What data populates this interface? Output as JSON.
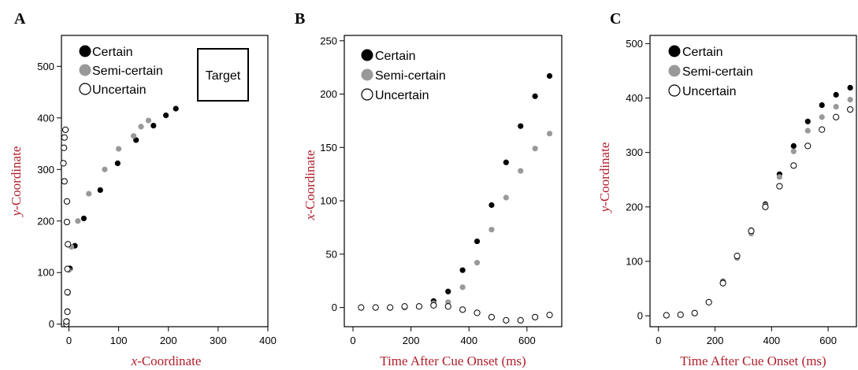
{
  "colors": {
    "certain": "#000000",
    "semi_certain": "#999999",
    "uncertain_stroke": "#000000",
    "uncertain_fill": "#ffffff",
    "axis_title": "#b01e2b"
  },
  "chart_data": [
    {
      "panel": "A",
      "type": "scatter",
      "xlabel_italic": "x",
      "xlabel_rest": "-Coordinate",
      "ylabel_italic": "y",
      "ylabel_rest": "-Coordinate",
      "xlim": [
        -15,
        400
      ],
      "ylim": [
        -5,
        560
      ],
      "xticks": [
        0,
        100,
        200,
        300,
        400
      ],
      "yticks": [
        0,
        100,
        200,
        300,
        400,
        500
      ],
      "legend_position": "top-left",
      "annotation": "Target",
      "series": [
        {
          "name": "Certain",
          "style": "certain",
          "points": [
            [
              -5,
              0
            ],
            [
              -4,
              6
            ],
            [
              -3,
              25
            ],
            [
              -2,
              62
            ],
            [
              2,
              108
            ],
            [
              12,
              152
            ],
            [
              30,
              205
            ],
            [
              63,
              260
            ],
            [
              98,
              312
            ],
            [
              135,
              357
            ],
            [
              170,
              385
            ],
            [
              195,
              405
            ],
            [
              215,
              418
            ]
          ]
        },
        {
          "name": "Semi-certain",
          "style": "semi",
          "points": [
            [
              -5,
              0
            ],
            [
              -4,
              6
            ],
            [
              -3,
              24
            ],
            [
              -2,
              60
            ],
            [
              0,
              105
            ],
            [
              5,
              150
            ],
            [
              18,
              200
            ],
            [
              40,
              253
            ],
            [
              72,
              300
            ],
            [
              100,
              340
            ],
            [
              130,
              365
            ],
            [
              145,
              383
            ],
            [
              160,
              395
            ]
          ]
        },
        {
          "name": "Uncertain",
          "style": "uncertain",
          "points": [
            [
              -5,
              0
            ],
            [
              -5,
              5
            ],
            [
              -3,
              24
            ],
            [
              -3,
              62
            ],
            [
              -3,
              107
            ],
            [
              -2,
              155
            ],
            [
              -4,
              198
            ],
            [
              -4,
              238
            ],
            [
              -9,
              277
            ],
            [
              -11,
              312
            ],
            [
              -10,
              342
            ],
            [
              -9,
              362
            ],
            [
              -7,
              377
            ]
          ]
        }
      ]
    },
    {
      "panel": "B",
      "type": "scatter",
      "xlabel": "Time After Cue Onset (ms)",
      "ylabel_italic": "x",
      "ylabel_rest": "-Coordinate",
      "xlim": [
        -30,
        720
      ],
      "ylim": [
        -18,
        255
      ],
      "xticks": [
        0,
        200,
        400,
        600
      ],
      "yticks": [
        0,
        50,
        100,
        150,
        200,
        250
      ],
      "legend_position": "top-left",
      "series": [
        {
          "name": "Certain",
          "style": "certain",
          "x": [
            28,
            78,
            128,
            178,
            228,
            278,
            328,
            378,
            428,
            478,
            528,
            578,
            628,
            678
          ],
          "y": [
            0,
            0,
            0,
            0,
            1,
            6,
            15,
            35,
            62,
            96,
            136,
            170,
            198,
            217
          ]
        },
        {
          "name": "Semi-certain",
          "style": "semi",
          "x": [
            28,
            78,
            128,
            178,
            228,
            278,
            328,
            378,
            428,
            478,
            528,
            578,
            628,
            678
          ],
          "y": [
            0,
            0,
            0,
            0,
            1,
            4,
            5,
            19,
            42,
            73,
            103,
            128,
            149,
            163
          ]
        },
        {
          "name": "Uncertain",
          "style": "uncertain",
          "x": [
            28,
            78,
            128,
            178,
            228,
            278,
            328,
            378,
            428,
            478,
            528,
            578,
            628,
            678
          ],
          "y": [
            0,
            0,
            0,
            1,
            1,
            2,
            1,
            -2,
            -5,
            -9,
            -12,
            -12,
            -9,
            -7
          ]
        }
      ]
    },
    {
      "panel": "C",
      "type": "scatter",
      "xlabel": "Time After Cue Onset (ms)",
      "ylabel_italic": "y",
      "ylabel_rest": "-Coordinate",
      "xlim": [
        -30,
        700
      ],
      "ylim": [
        -20,
        515
      ],
      "xticks": [
        0,
        200,
        400,
        600
      ],
      "yticks": [
        0,
        100,
        200,
        300,
        400,
        500
      ],
      "legend_position": "top-left",
      "series": [
        {
          "name": "Certain",
          "style": "certain",
          "x": [
            28,
            78,
            128,
            178,
            228,
            278,
            328,
            378,
            428,
            478,
            528,
            578,
            628,
            678
          ],
          "y": [
            1,
            2,
            5,
            25,
            63,
            110,
            157,
            205,
            260,
            312,
            357,
            387,
            406,
            419
          ]
        },
        {
          "name": "Semi-certain",
          "style": "semi",
          "x": [
            28,
            78,
            128,
            178,
            228,
            278,
            328,
            378,
            428,
            478,
            528,
            578,
            628,
            678
          ],
          "y": [
            1,
            2,
            5,
            25,
            62,
            106,
            151,
            203,
            255,
            302,
            340,
            365,
            384,
            397
          ]
        },
        {
          "name": "Uncertain",
          "style": "uncertain",
          "x": [
            28,
            78,
            128,
            178,
            228,
            278,
            328,
            378,
            428,
            478,
            528,
            578,
            628,
            678
          ],
          "y": [
            1,
            2,
            5,
            25,
            60,
            110,
            156,
            200,
            238,
            276,
            312,
            342,
            365,
            379
          ]
        }
      ]
    }
  ]
}
